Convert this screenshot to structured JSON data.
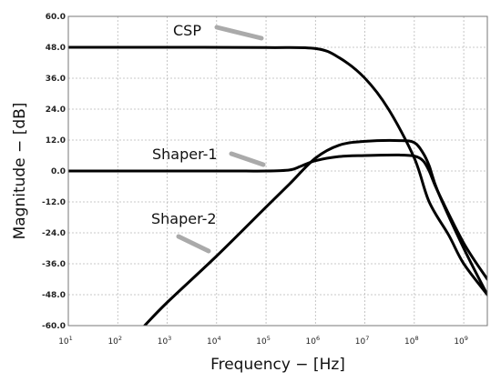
{
  "chart_data": {
    "type": "line",
    "title": "",
    "xlabel": "Frequency − [Hz]",
    "ylabel": "Magnitude − [dB]",
    "x_scale": "log",
    "xlim": [
      10,
      3000000000
    ],
    "ylim": [
      -60,
      60
    ],
    "y_ticks": [
      "60.0",
      "48.0",
      "36.0",
      "24.0",
      "12.0",
      "0.0",
      "-12.0",
      "-24.0",
      "-36.0",
      "-48.0",
      "-60.0"
    ],
    "x_ticks": [
      {
        "base": "10",
        "exp": "1"
      },
      {
        "base": "10",
        "exp": "2"
      },
      {
        "base": "10",
        "exp": "3"
      },
      {
        "base": "10",
        "exp": "4"
      },
      {
        "base": "10",
        "exp": "5"
      },
      {
        "base": "10",
        "exp": "6"
      },
      {
        "base": "10",
        "exp": "7"
      },
      {
        "base": "10",
        "exp": "8"
      },
      {
        "base": "10",
        "exp": "9"
      }
    ],
    "grid": true,
    "legend": "none",
    "series": [
      {
        "name": "CSP",
        "x": [
          10,
          1000,
          100000,
          1000000,
          3000000,
          10000000,
          30000000,
          100000000,
          200000000,
          500000000,
          1000000000,
          3000000000
        ],
        "y": [
          48,
          48,
          47.9,
          47.5,
          44,
          36,
          24,
          5,
          -12,
          -25,
          -36,
          -48
        ]
      },
      {
        "name": "Shaper-1",
        "x": [
          10,
          10000,
          100000,
          300000,
          500000,
          1000000,
          3000000,
          10000000,
          50000000,
          100000000,
          150000000,
          200000000,
          300000000,
          1000000000,
          3000000000
        ],
        "y": [
          0,
          0,
          0,
          0.4,
          1.8,
          4,
          5.6,
          6,
          6.2,
          5.8,
          4,
          0,
          -8,
          -28,
          -42
        ]
      },
      {
        "name": "Shaper-2",
        "x": [
          350,
          1000,
          10000,
          100000,
          300000,
          1000000,
          3000000,
          10000000,
          50000000,
          100000000,
          150000000,
          200000000,
          300000000,
          1000000000,
          3000000000
        ],
        "y": [
          -60,
          -51,
          -33,
          -14,
          -5,
          5,
          10,
          11.5,
          11.8,
          11,
          7,
          2,
          -8,
          -30,
          -48
        ]
      }
    ],
    "annotations": [
      "CSP",
      "Shaper-1",
      "Shaper-2"
    ]
  }
}
